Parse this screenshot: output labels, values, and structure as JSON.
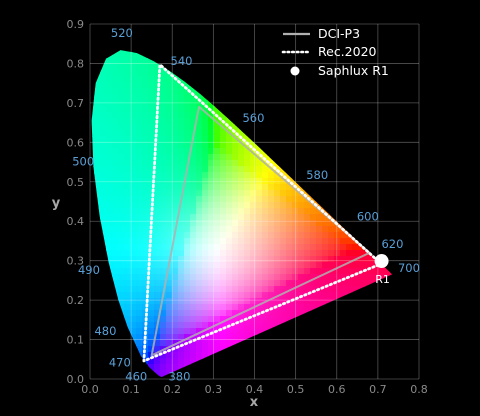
{
  "chart_data": {
    "type": "scatter",
    "title": "",
    "xlabel": "x",
    "ylabel": "y",
    "xlim": [
      0,
      0.8
    ],
    "ylim": [
      0,
      0.9
    ],
    "xticks": [
      "0.0",
      "0.1",
      "0.2",
      "0.3",
      "0.4",
      "0.5",
      "0.6",
      "0.7",
      "0.8"
    ],
    "yticks": [
      "0.0",
      "0.1",
      "0.2",
      "0.3",
      "0.4",
      "0.5",
      "0.6",
      "0.7",
      "0.8",
      "0.9"
    ],
    "grid": true,
    "legend_position": "top-right",
    "spectral_locus": [
      [
        0.1741,
        0.005
      ],
      [
        0.1666,
        0.0089
      ],
      [
        0.144,
        0.0297
      ],
      [
        0.1241,
        0.0578
      ],
      [
        0.0913,
        0.1327
      ],
      [
        0.0687,
        0.2007
      ],
      [
        0.0454,
        0.295
      ],
      [
        0.0235,
        0.4127
      ],
      [
        0.0082,
        0.5384
      ],
      [
        0.0039,
        0.6548
      ],
      [
        0.0139,
        0.7502
      ],
      [
        0.0389,
        0.812
      ],
      [
        0.0743,
        0.8338
      ],
      [
        0.1142,
        0.8262
      ],
      [
        0.1547,
        0.8059
      ],
      [
        0.1929,
        0.7816
      ],
      [
        0.2296,
        0.7543
      ],
      [
        0.2658,
        0.7243
      ],
      [
        0.3016,
        0.6923
      ],
      [
        0.3373,
        0.6589
      ],
      [
        0.3731,
        0.6245
      ],
      [
        0.4087,
        0.5896
      ],
      [
        0.4441,
        0.5547
      ],
      [
        0.4788,
        0.5202
      ],
      [
        0.5125,
        0.4866
      ],
      [
        0.5448,
        0.4544
      ],
      [
        0.5752,
        0.4242
      ],
      [
        0.6029,
        0.3965
      ],
      [
        0.627,
        0.3725
      ],
      [
        0.6482,
        0.3514
      ],
      [
        0.6658,
        0.334
      ],
      [
        0.6801,
        0.3197
      ],
      [
        0.6915,
        0.3083
      ],
      [
        0.7006,
        0.2993
      ],
      [
        0.7079,
        0.292
      ],
      [
        0.7347,
        0.2653
      ]
    ],
    "wavelength_labels": [
      {
        "text": "380",
        "x": 0.2175,
        "y": -0.0035
      },
      {
        "text": "460",
        "x": 0.1125,
        "y": -0.0035
      },
      {
        "text": "470",
        "x": 0.0725,
        "y": 0.0315
      },
      {
        "text": "480",
        "x": 0.0375,
        "y": 0.1115
      },
      {
        "text": "490",
        "x": -0.0025,
        "y": 0.2665
      },
      {
        "text": "500",
        "x": -0.0165,
        "y": 0.5415
      },
      {
        "text": "520",
        "x": 0.0775,
        "y": 0.8665
      },
      {
        "text": "540",
        "x": 0.2225,
        "y": 0.7965
      },
      {
        "text": "560",
        "x": 0.3975,
        "y": 0.6515
      },
      {
        "text": "580",
        "x": 0.5525,
        "y": 0.5065
      },
      {
        "text": "600",
        "x": 0.6755,
        "y": 0.4015
      },
      {
        "text": "620",
        "x": 0.7355,
        "y": 0.3315
      },
      {
        "text": "700",
        "x": 0.7755,
        "y": 0.2715
      }
    ],
    "series": [
      {
        "name": "DCI-P3",
        "style": "solid",
        "color": "#b0b0b0",
        "points": [
          [
            0.68,
            0.32
          ],
          [
            0.265,
            0.69
          ],
          [
            0.15,
            0.06
          ]
        ]
      },
      {
        "name": "Rec.2020",
        "style": "dotted",
        "color": "#ffffff",
        "points": [
          [
            0.708,
            0.292
          ],
          [
            0.17,
            0.797
          ],
          [
            0.131,
            0.046
          ]
        ]
      },
      {
        "name": "Saphlux R1",
        "style": "point",
        "color": "#ffffff",
        "points": [
          [
            0.709,
            0.299
          ]
        ],
        "label": "R1"
      }
    ]
  }
}
